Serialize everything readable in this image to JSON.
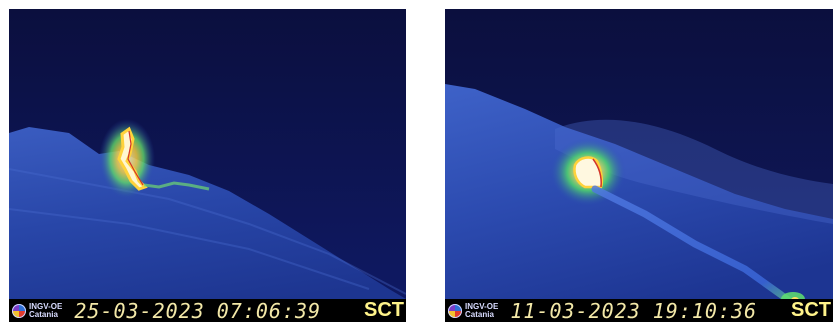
{
  "frames": [
    {
      "logo_line1": "INGV-OE",
      "logo_line2": "Catania",
      "date": "25-03-2023",
      "time": "07:06:39",
      "station": "SCT"
    },
    {
      "logo_line1": "INGV-OE",
      "logo_line2": "Catania",
      "date": "11-03-2023",
      "time": "19:10:36",
      "station": "SCT"
    }
  ],
  "colors": {
    "sky": "#0a0f4a",
    "slope": "#1f3c9a",
    "hot_core": "#fff6d0",
    "hot_edge": "#ffd23a",
    "warm": "#49d86a",
    "timestamp": "#f3e8a8",
    "station_label": "#fff38a"
  }
}
